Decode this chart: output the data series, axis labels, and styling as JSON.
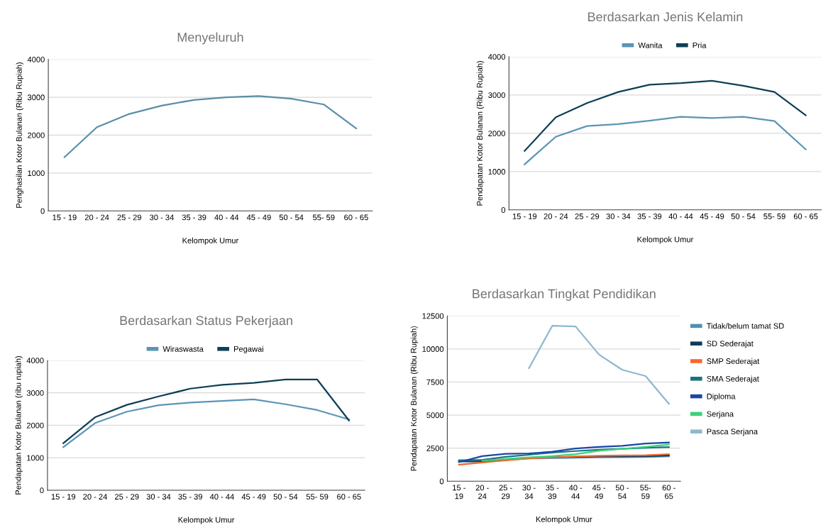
{
  "chart_data": [
    {
      "type": "line",
      "title": "Menyeluruh",
      "xlabel": "Kelompok Umur",
      "ylabel": "Penghasilan Kotor Bulanan (Ribu Rupiah)",
      "categories": [
        "15 - 19",
        "20 - 24",
        "25 - 29",
        "30 - 34",
        "35 - 39",
        "40 - 44",
        "45 - 49",
        "50 - 54",
        "55- 59",
        "60 - 65"
      ],
      "ylim": [
        0,
        4000
      ],
      "yticks": [
        0,
        1000,
        2000,
        3000,
        4000
      ],
      "grid": "y",
      "legend": false,
      "series": [
        {
          "color": "#5b8ea9",
          "values": [
            1420,
            2210,
            2560,
            2780,
            2930,
            3000,
            3030,
            2960,
            2810,
            2180
          ]
        }
      ]
    },
    {
      "type": "line",
      "title": "Berdasarkan Jenis Kelamin",
      "xlabel": "Kelompok Umur",
      "ylabel": "Pendapatan Kotor Bulanan (Ribu Rupiah)",
      "categories": [
        "15 - 19",
        "20 - 24",
        "25 - 29",
        "30 - 34",
        "35 - 39",
        "40 - 44",
        "45 - 49",
        "50 - 54",
        "55- 59",
        "60 - 65"
      ],
      "ylim": [
        0,
        4000
      ],
      "yticks": [
        0,
        1000,
        2000,
        3000,
        4000
      ],
      "grid": "y",
      "legend": "top",
      "series": [
        {
          "name": "Wanita",
          "color": "#5b95b5",
          "values": [
            1190,
            1910,
            2190,
            2240,
            2330,
            2430,
            2400,
            2430,
            2320,
            1580
          ]
        },
        {
          "name": "Pria",
          "color": "#0e3f55",
          "values": [
            1540,
            2420,
            2790,
            3080,
            3270,
            3310,
            3370,
            3240,
            3080,
            2470
          ]
        }
      ]
    },
    {
      "type": "line",
      "title": "Berdasarkan Status Pekerjaan",
      "xlabel": "Kelompok Umur",
      "ylabel": "Pendapatan Kotor Bulanan (ribu rupiah)",
      "categories": [
        "15 - 19",
        "20 - 24",
        "25 - 29",
        "30 - 34",
        "35 - 39",
        "40 - 44",
        "45 - 49",
        "50 - 54",
        "55- 59",
        "60 - 65"
      ],
      "ylim": [
        0,
        4000
      ],
      "yticks": [
        0,
        1000,
        2000,
        3000,
        4000
      ],
      "grid": "y",
      "legend": "top",
      "series": [
        {
          "name": "Wiraswasta",
          "color": "#5b95b5",
          "values": [
            1330,
            2070,
            2420,
            2620,
            2700,
            2750,
            2800,
            2650,
            2470,
            2180
          ]
        },
        {
          "name": "Pegawai",
          "color": "#0e3f55",
          "values": [
            1450,
            2250,
            2630,
            2890,
            3130,
            3250,
            3310,
            3410,
            3410,
            2150
          ]
        }
      ]
    },
    {
      "type": "line",
      "title": "Berdasarkan Tingkat Pendidikan",
      "xlabel": "Kelompok Umur",
      "ylabel": "Pendapatan Kotor Bulanan (Ribu Rupiah)",
      "categories": [
        "15 -\n19",
        "20 -\n24",
        "25 -\n29",
        "30 -\n34",
        "35 -\n39",
        "40 -\n44",
        "45 -\n49",
        "50 -\n54",
        "55-\n59",
        "60 -\n65"
      ],
      "ylim": [
        0,
        12500
      ],
      "yticks": [
        0,
        2500,
        5000,
        7500,
        10000,
        12500
      ],
      "grid": "y",
      "legend": "right",
      "series": [
        {
          "name": "Tidak/belum tamat SD",
          "color": "#4f8fb5",
          "values": [
            1580,
            1550,
            1620,
            1720,
            1750,
            1780,
            1800,
            1820,
            1830,
            1880
          ]
        },
        {
          "name": "SD Sederajat",
          "color": "#0f3b5a",
          "values": [
            1500,
            1500,
            1650,
            1780,
            1820,
            1850,
            1880,
            1880,
            1900,
            1950
          ]
        },
        {
          "name": "SMP Sederajat",
          "color": "#f4692c",
          "values": [
            1250,
            1420,
            1580,
            1730,
            1800,
            1870,
            1920,
            1950,
            1970,
            2050
          ]
        },
        {
          "name": "SMA Sederajat",
          "color": "#17767c",
          "values": [
            1580,
            1620,
            1850,
            2000,
            2170,
            2280,
            2380,
            2450,
            2530,
            2580
          ]
        },
        {
          "name": "Diploma",
          "color": "#1a47a8",
          "values": [
            1450,
            1900,
            2070,
            2100,
            2230,
            2480,
            2600,
            2680,
            2850,
            2930
          ]
        },
        {
          "name": "Serjana",
          "color": "#3dd17c",
          "values": [
            null,
            1550,
            1680,
            1800,
            1900,
            2050,
            2300,
            2450,
            2600,
            2780
          ]
        },
        {
          "name": "Pasca Serjana",
          "color": "#8fb8cc",
          "values": [
            null,
            null,
            null,
            8550,
            11750,
            11700,
            9580,
            8420,
            7950,
            5850
          ]
        }
      ]
    }
  ]
}
